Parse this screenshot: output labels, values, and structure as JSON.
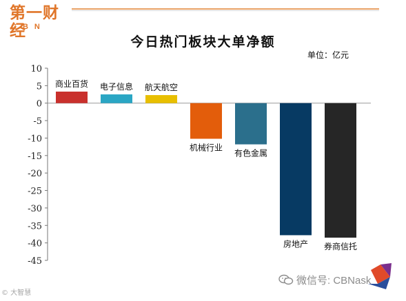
{
  "logo": {
    "main": "第一财经",
    "sub": "CBN"
  },
  "unit": "单位：亿元",
  "footer": {
    "left": "© 大智慧",
    "right": "微信号: CBNask",
    "wechat_icon": "wechat-icon"
  },
  "colors": {
    "brand": "#e0762a"
  },
  "chart_data": {
    "type": "bar",
    "title": "今日热门板块大单净额",
    "categories": [
      "商业百货",
      "电子信息",
      "航天航空",
      "机械行业",
      "有色金属",
      "房地产",
      "券商信托"
    ],
    "values": [
      3.3,
      2.5,
      2.3,
      -10.2,
      -11.8,
      -37.8,
      -38.5
    ],
    "colors": [
      "#c9302c",
      "#2aa6c4",
      "#e8bf00",
      "#e35d0b",
      "#2b6f8c",
      "#073a63",
      "#262626"
    ],
    "yticks": [
      10,
      5,
      0,
      -5,
      -10,
      -15,
      -20,
      -25,
      -30,
      -35,
      -40,
      -45
    ],
    "ylim": [
      -45,
      10
    ],
    "grid": false,
    "legend": false
  }
}
